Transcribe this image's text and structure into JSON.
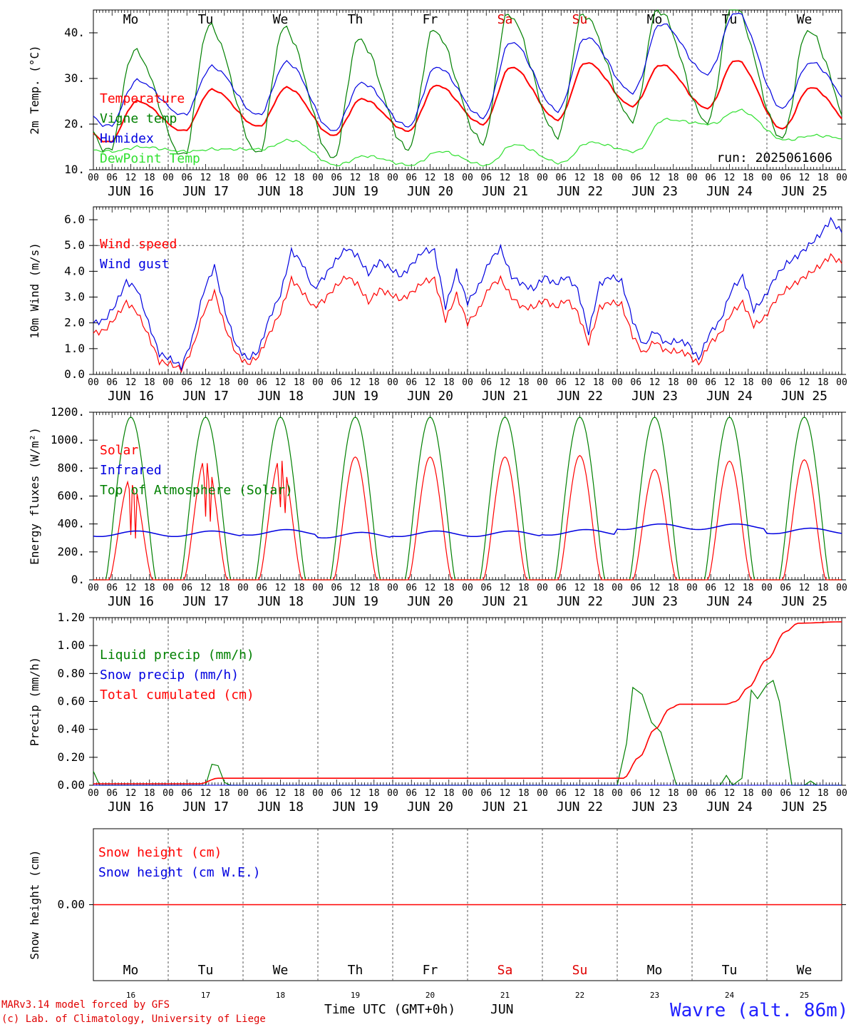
{
  "hours": [
    "00",
    "06",
    "12",
    "18"
  ],
  "weekdays": [
    "Mo",
    "Tu",
    "We",
    "Th",
    "Fr",
    "Sa",
    "Su",
    "Mo",
    "Tu",
    "We"
  ],
  "weekday_colors": [
    "#000",
    "#000",
    "#000",
    "#000",
    "#000",
    "#e00000",
    "#e00000",
    "#000",
    "#000",
    "#000"
  ],
  "dates": [
    "JUN 16",
    "JUN 17",
    "JUN 18",
    "JUN 19",
    "JUN 20",
    "JUN 21",
    "JUN 22",
    "JUN 23",
    "JUN 24",
    "JUN 25"
  ],
  "day_numbers": [
    "16",
    "17",
    "18",
    "19",
    "20",
    "21",
    "22",
    "23",
    "24",
    "25"
  ],
  "colors": {
    "red": "#ff0000",
    "green": "#008000",
    "blue": "#0000e0",
    "lightgreen": "#30e030",
    "dash": "#555555"
  },
  "footer": {
    "credit1": "MARv3.14 model forced by GFS",
    "credit2": "(c) Lab. of Climatology, University of Liege",
    "axis_title": "Time UTC (GMT+0h)",
    "month": "JUN",
    "station": "Wavre (alt. 86m)"
  },
  "chart_data": [
    {
      "type": "line",
      "id": "temp",
      "ylabel": "2m Temp. (°C)",
      "ylim": [
        10,
        45
      ],
      "yticks": [
        10,
        20,
        30,
        40
      ],
      "ytick_labels": [
        "10.",
        "20.",
        "30.",
        "40."
      ],
      "annotation": "run: 2025061606",
      "series": [
        {
          "name": "Temperature",
          "color": "red",
          "daily_min": [
            16,
            18.5,
            19.5,
            17.5,
            18.5,
            20,
            21,
            24,
            23.5,
            19
          ],
          "daily_max": [
            25,
            27.5,
            28,
            25.5,
            28.5,
            32.5,
            33.5,
            33,
            34,
            28
          ]
        },
        {
          "name": "Vigne temp",
          "color": "green",
          "daily_min": [
            14,
            13,
            13.5,
            12.5,
            14.5,
            16,
            17.5,
            21,
            20.5,
            17
          ],
          "daily_max": [
            36,
            41.5,
            41,
            38.5,
            40.5,
            44,
            44,
            45,
            46,
            40.5
          ]
        },
        {
          "name": "Humidex",
          "color": "blue",
          "daily_min": [
            19.5,
            22,
            22,
            18.5,
            19.5,
            21.5,
            23,
            27,
            31,
            23.5
          ],
          "daily_max": [
            29.5,
            32.5,
            33.5,
            29,
            32.5,
            38,
            39,
            42,
            44.5,
            33.5
          ]
        },
        {
          "name": "DewPoint Temp",
          "color": "lightgreen",
          "daily_min": [
            14,
            14,
            14.5,
            11,
            11,
            11,
            11.5,
            14,
            20,
            16.5
          ],
          "daily_max": [
            15,
            14.5,
            16.5,
            13,
            14,
            15.5,
            16,
            21,
            23,
            17.5
          ]
        }
      ]
    },
    {
      "type": "line",
      "id": "wind",
      "ylabel": "10m Wind (m/s)",
      "ylim": [
        0,
        6.5
      ],
      "yticks": [
        0,
        1,
        2,
        3,
        4,
        5,
        6
      ],
      "ytick_labels": [
        "0.0",
        "1.0",
        "2.0",
        "3.0",
        "4.0",
        "5.0",
        "6.0"
      ],
      "ref_line": 5.0,
      "series": [
        {
          "name": "Wind speed",
          "color": "red",
          "points": [
            1.6,
            1.7,
            2.2,
            2.8,
            2.4,
            1.5,
            0.5,
            0.4,
            0.2,
            1.0,
            2.4,
            3.2,
            1.8,
            0.8,
            0.4,
            0.7,
            1.6,
            2.4,
            3.7,
            3.2,
            2.6,
            2.9,
            3.4,
            3.8,
            3.5,
            2.8,
            3.3,
            3.1,
            2.9,
            3.2,
            3.6,
            3.7,
            2.1,
            3.1,
            2.0,
            2.5,
            3.4,
            3.7,
            3.0,
            2.6,
            2.6,
            2.9,
            2.6,
            2.9,
            2.4,
            1.2,
            2.6,
            2.8,
            2.7,
            1.5,
            0.8,
            1.3,
            0.9,
            0.9,
            0.8,
            0.4,
            1.2,
            1.6,
            2.4,
            2.8,
            1.9,
            2.2,
            2.9,
            3.3,
            3.6,
            3.9,
            4.2,
            4.6,
            4.3
          ]
        },
        {
          "name": "Wind gust",
          "color": "blue",
          "points": [
            2.0,
            2.1,
            2.7,
            3.6,
            3.3,
            2.0,
            0.8,
            0.6,
            0.3,
            1.4,
            3.2,
            4.2,
            2.4,
            1.1,
            0.6,
            0.9,
            2.2,
            3.1,
            4.8,
            4.3,
            3.3,
            3.8,
            4.4,
            4.9,
            4.6,
            3.9,
            4.4,
            4.1,
            3.8,
            4.3,
            4.8,
            4.8,
            2.6,
            4.0,
            2.8,
            3.4,
            4.4,
            4.9,
            3.8,
            3.5,
            3.3,
            3.8,
            3.5,
            3.8,
            3.3,
            1.6,
            3.5,
            3.8,
            3.6,
            2.1,
            1.1,
            1.7,
            1.2,
            1.3,
            1.2,
            0.6,
            1.6,
            2.1,
            3.3,
            3.8,
            2.5,
            3.0,
            3.8,
            4.3,
            4.6,
            5.0,
            5.4,
            6.0,
            5.5
          ]
        }
      ]
    },
    {
      "type": "line",
      "id": "energy",
      "ylabel": "Energy fluxes (W/m²)",
      "ylim": [
        0,
        1200
      ],
      "yticks": [
        0,
        200,
        400,
        600,
        800,
        1000,
        1200
      ],
      "ytick_labels": [
        "0.",
        "200.",
        "400.",
        "600.",
        "800.",
        "1000.",
        "1200."
      ],
      "series": [
        {
          "name": "Solar",
          "color": "red",
          "daily_peak": [
            730,
            870,
            870,
            880,
            880,
            880,
            890,
            790,
            850,
            860
          ]
        },
        {
          "name": "Infrared",
          "color": "blue",
          "daily_mean": [
            330,
            330,
            340,
            320,
            330,
            330,
            340,
            380,
            380,
            350
          ]
        },
        {
          "name": "Top of Atmosphere (Solar)",
          "color": "green",
          "daily_peak": [
            1165,
            1165,
            1165,
            1165,
            1165,
            1165,
            1165,
            1165,
            1165,
            1165
          ]
        }
      ]
    },
    {
      "type": "line",
      "id": "precip",
      "ylabel": "Precip (mm/h)",
      "ylim": [
        0,
        1.2
      ],
      "yticks": [
        0,
        0.2,
        0.4,
        0.6,
        0.8,
        1.0,
        1.2
      ],
      "ytick_labels": [
        "0.00",
        "0.20",
        "0.40",
        "0.60",
        "0.80",
        "1.00",
        "1.20"
      ],
      "series": [
        {
          "name": "Liquid precip (mm/h)",
          "color": "green"
        },
        {
          "name": "Snow precip (mm/h)",
          "color": "blue"
        },
        {
          "name": "Total cumulated (cm)",
          "color": "red"
        }
      ]
    },
    {
      "type": "line",
      "id": "snow",
      "ylabel": "Snow height (cm)",
      "ylim": [
        -1,
        1
      ],
      "yticks": [
        0
      ],
      "ytick_labels": [
        "0.00"
      ],
      "series": [
        {
          "name": "Snow height (cm)",
          "color": "red",
          "value": 0
        },
        {
          "name": "Snow height (cm W.E.)",
          "color": "blue",
          "value": 0
        }
      ]
    }
  ]
}
